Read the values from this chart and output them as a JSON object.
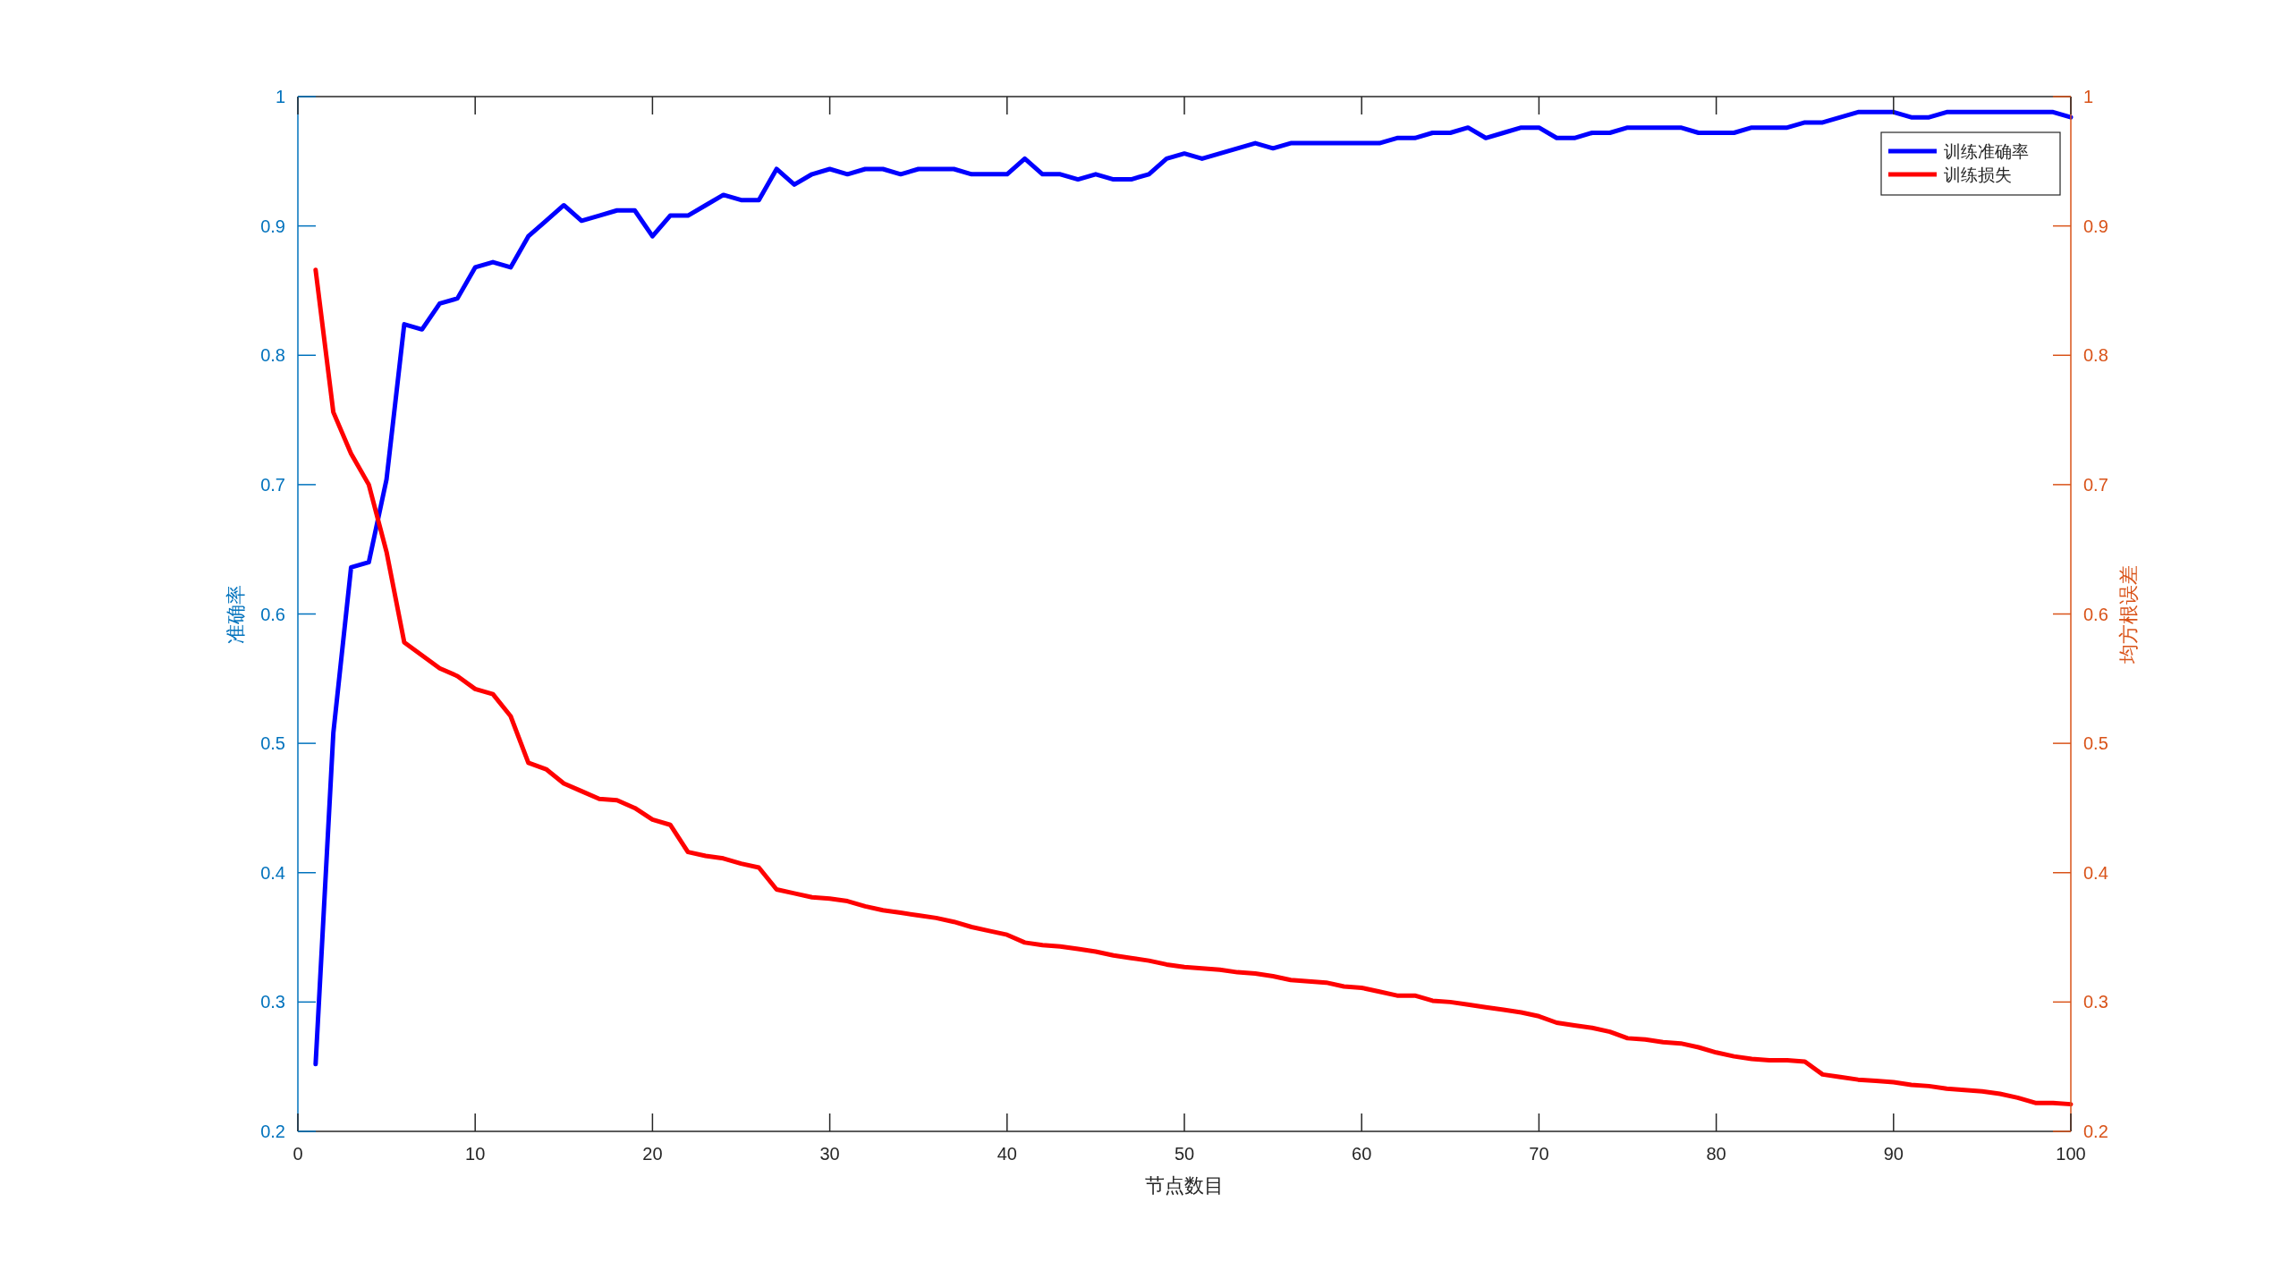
{
  "chart_data": {
    "type": "line",
    "xlabel": "节点数目",
    "ylabel": "准确率",
    "y2label": "均方根误差",
    "x": [
      1,
      2,
      3,
      4,
      5,
      6,
      7,
      8,
      9,
      10,
      11,
      12,
      13,
      14,
      15,
      16,
      17,
      18,
      19,
      20,
      21,
      22,
      23,
      24,
      25,
      26,
      27,
      28,
      29,
      30,
      31,
      32,
      33,
      34,
      35,
      36,
      37,
      38,
      39,
      40,
      41,
      42,
      43,
      44,
      45,
      46,
      47,
      48,
      49,
      50,
      51,
      52,
      53,
      54,
      55,
      56,
      57,
      58,
      59,
      60,
      61,
      62,
      63,
      64,
      65,
      66,
      67,
      68,
      69,
      70,
      71,
      72,
      73,
      74,
      75,
      76,
      77,
      78,
      79,
      80,
      81,
      82,
      83,
      84,
      85,
      86,
      87,
      88,
      89,
      90,
      91,
      92,
      93,
      94,
      95,
      96,
      97,
      98,
      99,
      100
    ],
    "series": [
      {
        "name": "训练准确率",
        "color": "#0000ff",
        "values": [
          0.252,
          0.508,
          0.636,
          0.64,
          0.704,
          0.824,
          0.82,
          0.84,
          0.844,
          0.868,
          0.872,
          0.868,
          0.892,
          0.904,
          0.916,
          0.904,
          0.908,
          0.912,
          0.912,
          0.892,
          0.908,
          0.908,
          0.916,
          0.924,
          0.92,
          0.92,
          0.944,
          0.932,
          0.94,
          0.944,
          0.94,
          0.944,
          0.944,
          0.94,
          0.944,
          0.944,
          0.944,
          0.94,
          0.94,
          0.94,
          0.952,
          0.94,
          0.94,
          0.936,
          0.94,
          0.936,
          0.936,
          0.94,
          0.952,
          0.956,
          0.952,
          0.956,
          0.96,
          0.964,
          0.96,
          0.964,
          0.964,
          0.964,
          0.964,
          0.964,
          0.964,
          0.968,
          0.968,
          0.972,
          0.972,
          0.976,
          0.968,
          0.972,
          0.976,
          0.976,
          0.968,
          0.968,
          0.972,
          0.972,
          0.976,
          0.976,
          0.976,
          0.976,
          0.972,
          0.972,
          0.972,
          0.976,
          0.976,
          0.976,
          0.98,
          0.98,
          0.984,
          0.988,
          0.988,
          0.988,
          0.984,
          0.984,
          0.988,
          0.988,
          0.988,
          0.988,
          0.988,
          0.988,
          0.988,
          0.984
        ]
      },
      {
        "name": "训练损失",
        "color": "#ff0000",
        "axis": "y2",
        "values": [
          0.866,
          0.756,
          0.724,
          0.7,
          0.648,
          0.578,
          0.568,
          0.558,
          0.552,
          0.542,
          0.538,
          0.521,
          0.485,
          0.48,
          0.469,
          0.463,
          0.457,
          0.456,
          0.45,
          0.441,
          0.437,
          0.416,
          0.413,
          0.411,
          0.407,
          0.404,
          0.387,
          0.384,
          0.381,
          0.38,
          0.378,
          0.374,
          0.371,
          0.369,
          0.367,
          0.365,
          0.362,
          0.358,
          0.355,
          0.352,
          0.346,
          0.344,
          0.343,
          0.341,
          0.339,
          0.336,
          0.334,
          0.332,
          0.329,
          0.327,
          0.326,
          0.325,
          0.323,
          0.322,
          0.32,
          0.317,
          0.316,
          0.315,
          0.312,
          0.311,
          0.308,
          0.305,
          0.305,
          0.301,
          0.3,
          0.298,
          0.296,
          0.294,
          0.292,
          0.289,
          0.284,
          0.282,
          0.28,
          0.277,
          0.272,
          0.271,
          0.269,
          0.268,
          0.265,
          0.261,
          0.258,
          0.256,
          0.255,
          0.255,
          0.254,
          0.244,
          0.242,
          0.24,
          0.239,
          0.238,
          0.236,
          0.235,
          0.233,
          0.232,
          0.231,
          0.229,
          0.226,
          0.222,
          0.222,
          0.221
        ]
      }
    ],
    "xlim": [
      0,
      100
    ],
    "xticks": [
      0,
      10,
      20,
      30,
      40,
      50,
      60,
      70,
      80,
      90,
      100
    ],
    "ylim": [
      0.2,
      1
    ],
    "yticks": [
      0.2,
      0.3,
      0.4,
      0.5,
      0.6,
      0.7,
      0.8,
      0.9,
      1
    ],
    "y2lim": [
      0.2,
      1
    ],
    "y2ticks": [
      0.2,
      0.3,
      0.4,
      0.5,
      0.6,
      0.7,
      0.8,
      0.9,
      1
    ],
    "legend": "top right"
  }
}
